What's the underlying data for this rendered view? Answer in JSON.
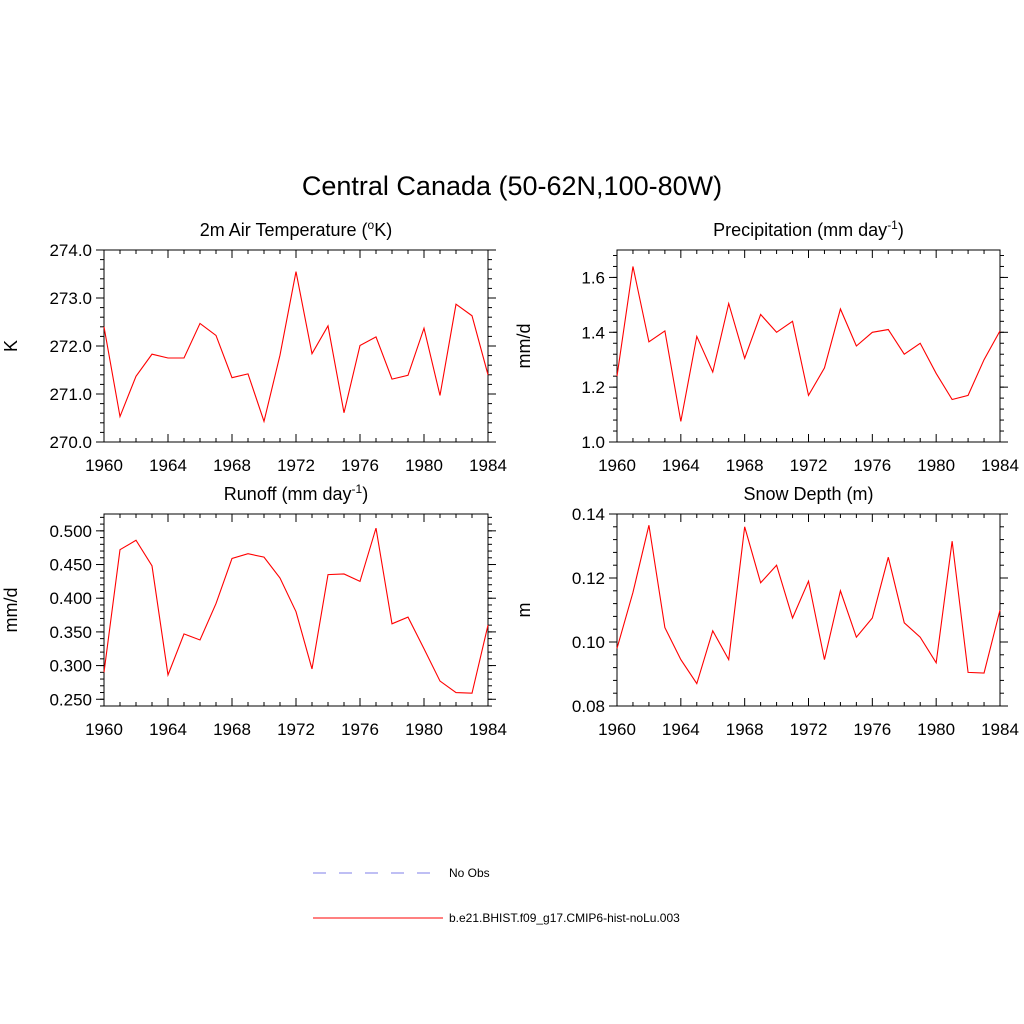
{
  "figure": {
    "title": "Central Canada (50-62N,100-80W)"
  },
  "legend": {
    "entries": [
      {
        "label": "No Obs",
        "style": "dashed",
        "color": "#9999ee"
      },
      {
        "label": "b.e21.BHIST.f09_g17.CMIP6-hist-noLu.003",
        "style": "solid",
        "color": "#ff0000"
      }
    ]
  },
  "chart_data": [
    {
      "type": "line",
      "title": "2m Air Temperature (",
      "title_sup": "o",
      "title_after": "K)",
      "ylabel": "K",
      "xlim": [
        1960,
        1984
      ],
      "ylim": [
        270.0,
        274.0
      ],
      "xticks": [
        1960,
        1964,
        1968,
        1972,
        1976,
        1980,
        1984
      ],
      "yticks": [
        270.0,
        271.0,
        272.0,
        273.0,
        274.0
      ],
      "ytick_labels": [
        "270.0",
        "271.0",
        "272.0",
        "273.0",
        "274.0"
      ],
      "yminor": 0.2,
      "series": [
        {
          "color": "#ff0000",
          "x": [
            1960,
            1961,
            1962,
            1963,
            1964,
            1965,
            1966,
            1967,
            1968,
            1969,
            1970,
            1971,
            1972,
            1973,
            1974,
            1975,
            1976,
            1977,
            1978,
            1979,
            1980,
            1981,
            1982,
            1983,
            1984
          ],
          "y": [
            272.4,
            270.53,
            271.37,
            271.83,
            271.75,
            271.75,
            272.47,
            272.22,
            271.34,
            271.42,
            270.43,
            271.81,
            273.55,
            271.84,
            272.42,
            270.61,
            272.01,
            272.19,
            271.31,
            271.39,
            272.37,
            270.97,
            272.87,
            272.63,
            271.4
          ]
        }
      ]
    },
    {
      "type": "line",
      "title": "Precipitation (mm day",
      "title_sup": "-1",
      "title_after": ")",
      "ylabel": "mm/d",
      "xlim": [
        1960,
        1984
      ],
      "ylim": [
        1.0,
        1.7
      ],
      "xticks": [
        1960,
        1964,
        1968,
        1972,
        1976,
        1980,
        1984
      ],
      "yticks": [
        1.0,
        1.2,
        1.4,
        1.6
      ],
      "ytick_labels": [
        "1.0",
        "1.2",
        "1.4",
        "1.6"
      ],
      "yminor": 0.04,
      "series": [
        {
          "color": "#ff0000",
          "x": [
            1960,
            1961,
            1962,
            1963,
            1964,
            1965,
            1966,
            1967,
            1968,
            1969,
            1970,
            1971,
            1972,
            1973,
            1974,
            1975,
            1976,
            1977,
            1978,
            1979,
            1980,
            1981,
            1982,
            1983,
            1984
          ],
          "y": [
            1.24,
            1.64,
            1.365,
            1.405,
            1.075,
            1.385,
            1.255,
            1.505,
            1.305,
            1.465,
            1.4,
            1.44,
            1.17,
            1.27,
            1.485,
            1.35,
            1.4,
            1.41,
            1.32,
            1.36,
            1.25,
            1.155,
            1.17,
            1.3,
            1.405
          ]
        }
      ]
    },
    {
      "type": "line",
      "title": "Runoff (mm day",
      "title_sup": "-1",
      "title_after": ")",
      "ylabel": "mm/d",
      "xlim": [
        1960,
        1984
      ],
      "ylim": [
        0.24,
        0.525
      ],
      "xticks": [
        1960,
        1964,
        1968,
        1972,
        1976,
        1980,
        1984
      ],
      "yticks": [
        0.25,
        0.3,
        0.35,
        0.4,
        0.45,
        0.5
      ],
      "ytick_labels": [
        "0.250",
        "0.300",
        "0.350",
        "0.400",
        "0.450",
        "0.500"
      ],
      "yminor": 0.01,
      "series": [
        {
          "color": "#ff0000",
          "x": [
            1960,
            1961,
            1962,
            1963,
            1964,
            1965,
            1966,
            1967,
            1968,
            1969,
            1970,
            1971,
            1972,
            1973,
            1974,
            1975,
            1976,
            1977,
            1978,
            1979,
            1980,
            1981,
            1982,
            1983,
            1984
          ],
          "y": [
            0.29,
            0.472,
            0.486,
            0.448,
            0.286,
            0.347,
            0.338,
            0.392,
            0.459,
            0.466,
            0.461,
            0.43,
            0.38,
            0.295,
            0.435,
            0.436,
            0.425,
            0.504,
            0.362,
            0.372,
            0.325,
            0.277,
            0.26,
            0.259,
            0.36
          ]
        }
      ]
    },
    {
      "type": "line",
      "title": "Snow Depth (m)",
      "title_sup": "",
      "title_after": "",
      "ylabel": "m",
      "xlim": [
        1960,
        1984
      ],
      "ylim": [
        0.08,
        0.14
      ],
      "xticks": [
        1960,
        1964,
        1968,
        1972,
        1976,
        1980,
        1984
      ],
      "yticks": [
        0.08,
        0.1,
        0.12,
        0.14
      ],
      "ytick_labels": [
        "0.08",
        "0.10",
        "0.12",
        "0.14"
      ],
      "yminor": 0.004,
      "series": [
        {
          "color": "#ff0000",
          "x": [
            1960,
            1961,
            1962,
            1963,
            1964,
            1965,
            1966,
            1967,
            1968,
            1969,
            1970,
            1971,
            1972,
            1973,
            1974,
            1975,
            1976,
            1977,
            1978,
            1979,
            1980,
            1981,
            1982,
            1983,
            1984
          ],
          "y": [
            0.098,
            0.1155,
            0.1365,
            0.1045,
            0.0945,
            0.087,
            0.1035,
            0.0945,
            0.136,
            0.1185,
            0.124,
            0.1075,
            0.119,
            0.0945,
            0.116,
            0.1015,
            0.1075,
            0.1265,
            0.106,
            0.1015,
            0.0935,
            0.1315,
            0.0905,
            0.0903,
            0.11
          ]
        }
      ]
    }
  ]
}
